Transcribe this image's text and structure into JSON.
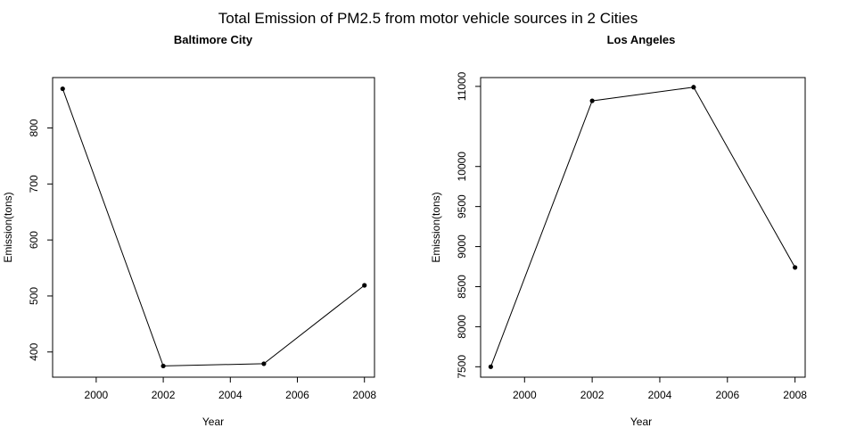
{
  "suptitle": "Total Emission of PM2.5 from motor vehicle sources in 2 Cities",
  "chart_data": [
    {
      "type": "line",
      "title": "Baltimore City",
      "xlabel": "Year",
      "ylabel": "Emission(tons)",
      "x": [
        1999,
        2002,
        2005,
        2008
      ],
      "y": [
        870,
        375,
        379,
        519
      ],
      "xlim": [
        1998.7,
        2008.3
      ],
      "ylim": [
        355,
        890
      ],
      "xticks": [
        2000,
        2002,
        2004,
        2006,
        2008
      ],
      "yticks": [
        400,
        500,
        600,
        700,
        800
      ],
      "grid": false,
      "legend": null,
      "markers": true
    },
    {
      "type": "line",
      "title": "Los Angeles",
      "xlabel": "Year",
      "ylabel": "Emission(tons)",
      "x": [
        1999,
        2002,
        2005,
        2008
      ],
      "y": [
        7500,
        10820,
        10990,
        8740
      ],
      "xlim": [
        1998.7,
        2008.3
      ],
      "ylim": [
        7370,
        11110
      ],
      "xticks": [
        2000,
        2002,
        2004,
        2006,
        2008
      ],
      "yticks": [
        7500,
        8000,
        8500,
        9000,
        9500,
        10000,
        11000
      ],
      "grid": false,
      "legend": null,
      "markers": true
    }
  ]
}
